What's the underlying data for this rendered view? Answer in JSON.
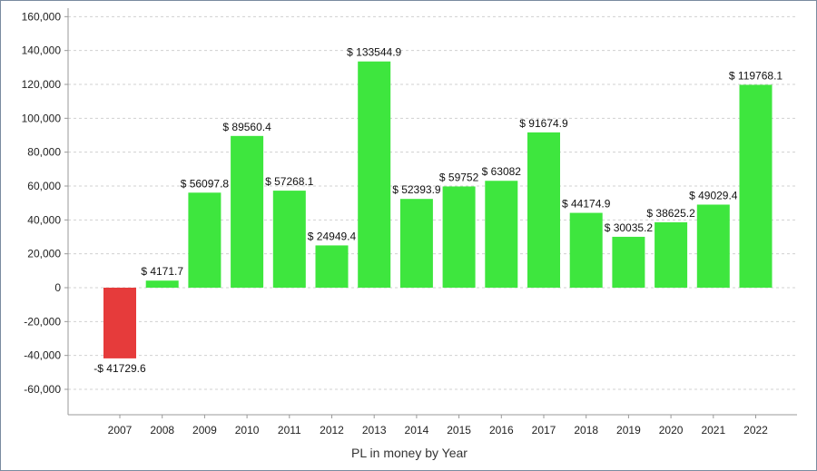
{
  "chart_data": {
    "type": "bar",
    "title": "",
    "xlabel": "PL in money by Year",
    "ylabel": "",
    "ylim": [
      -75000,
      165000
    ],
    "yticks": [
      160000,
      140000,
      120000,
      100000,
      80000,
      60000,
      40000,
      20000,
      0,
      -20000,
      -40000,
      -60000
    ],
    "ytick_labels": [
      "160,000",
      "140,000",
      "120,000",
      "100,000",
      "80,000",
      "60,000",
      "40,000",
      "20,000",
      "0",
      "-20,000",
      "-40,000",
      "-60,000"
    ],
    "grid": true,
    "categories": [
      "2007",
      "2008",
      "2009",
      "2010",
      "2011",
      "2012",
      "2013",
      "2014",
      "2015",
      "2016",
      "2017",
      "2018",
      "2019",
      "2020",
      "2021",
      "2022"
    ],
    "values": [
      -41729.6,
      4171.7,
      56097.8,
      89560.4,
      57268.1,
      24949.4,
      133544.9,
      52393.9,
      59752,
      63082,
      91674.9,
      44174.9,
      30035.2,
      38625.2,
      49029.4,
      119768.1
    ],
    "data_labels": [
      "-$ 41729.6",
      "$ 4171.7",
      "$ 56097.8",
      "$ 89560.4",
      "$ 57268.1",
      "$ 24949.4",
      "$ 133544.9",
      "$ 52393.9",
      "$ 59752",
      "$ 63082",
      "$ 91674.9",
      "$ 44174.9",
      "$ 30035.2",
      "$ 38625.2",
      "$ 49029.4",
      "$ 119768.1"
    ],
    "colors": {
      "positive": "#3ee63e",
      "negative": "#e63b3b",
      "grid": "#d0d0d0",
      "axis": "#999999"
    }
  }
}
